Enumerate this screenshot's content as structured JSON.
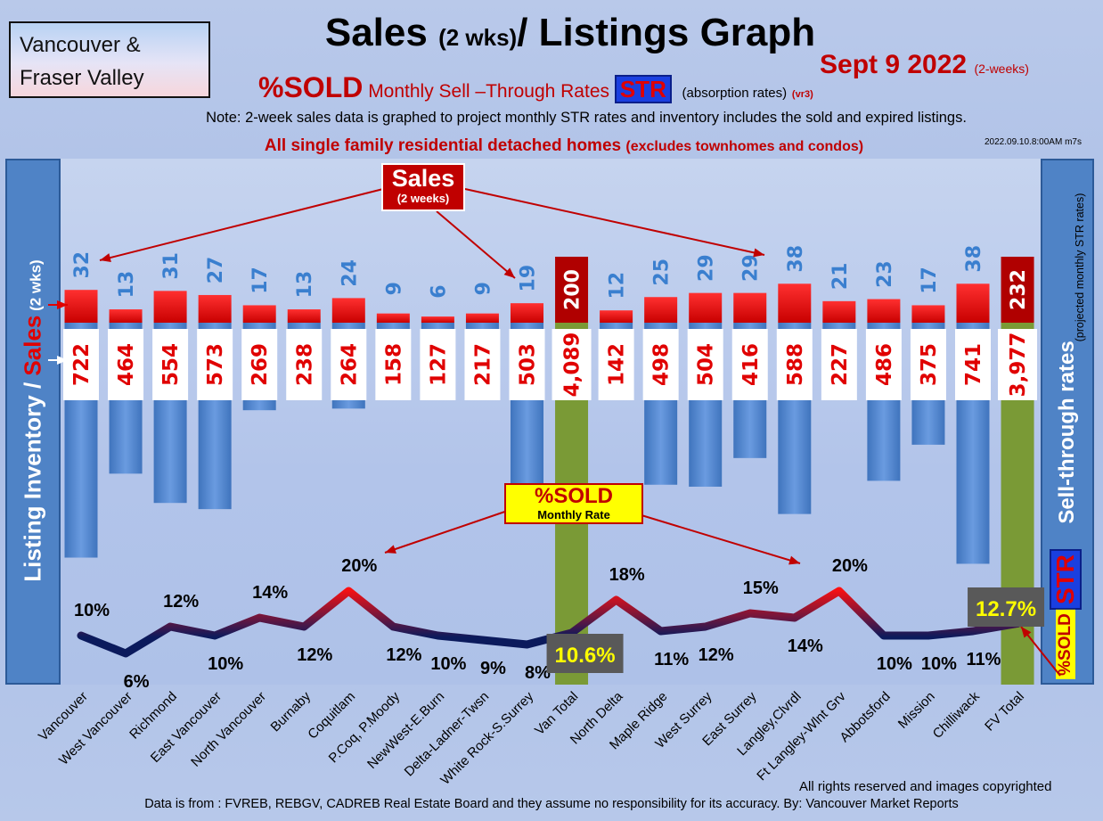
{
  "header": {
    "region_line1": "Vancouver &",
    "region_line2": "Fraser Valley",
    "title_main": "Sales ",
    "title_sub": "(2 wks)",
    "title_end": "/ Listings Graph",
    "date": "Sept 9  2022",
    "date_note": "(2-weeks)",
    "subtitle_pct": "%SOLD",
    "subtitle_text": "Monthly Sell –Through Rates",
    "str_badge": "STR",
    "absorption": "(absorption rates)",
    "version": "(vr3)",
    "note": "Note: 2-week sales data is graphed to project monthly STR rates and inventory includes the sold and expired listings.",
    "scope_main": "All single family residential detached homes",
    "scope_sub": "(excludes townhomes and condos)",
    "stamp": "2022.09.10.8:00AM m7s"
  },
  "axes": {
    "left_label_1": "Listing Inventory / ",
    "left_label_2": "Sales",
    "left_label_3": " (2 wks)",
    "right_label": "Sell-through rates",
    "right_sub": "(projected monthly STR rates)",
    "str_badge": "STR",
    "sold_badge": "%SOLD"
  },
  "callouts": {
    "sales_t1": "Sales",
    "sales_t2": "(2 weeks)",
    "sold_t1": "%SOLD",
    "sold_t2": "Monthly Rate"
  },
  "footer": {
    "rights": "All rights reserved and  images copyrighted",
    "source": "Data is from : FVREB, REBGV, CADREB Real Estate Board and they assume no responsibility for its accuracy. By: Vancouver Market Reports"
  },
  "colors": {
    "sales_bar": "#e60000",
    "listing_bar": "#4a84d0",
    "total_bar": "#7a9a36",
    "total_sales_bar": "#b00000",
    "line_low": "#0b1a5c",
    "line_high": "#ff1010"
  },
  "chart_data": {
    "type": "bar",
    "categories": [
      "Vancouver",
      "West Vancouver",
      "Richmond",
      "East Vancouver",
      "North Vancouver",
      "Burnaby",
      "Coquitlam",
      "P.Coq, P.Moody",
      "NewWest-E.Burn",
      "Delta-Ladner-Twsn",
      "White Rock-S.Surrey",
      "Van Total",
      "North Delta",
      "Maple Ridge",
      "West Surrey",
      "East Surrey",
      "Langley,Clvrdl",
      "Ft Langley-Wlnt Grv",
      "Abbotsford",
      "Mission",
      "Chilliwack",
      "FV Total"
    ],
    "series": [
      {
        "name": "Sales",
        "values": [
          32,
          13,
          31,
          27,
          17,
          13,
          24,
          9,
          6,
          9,
          19,
          200,
          12,
          25,
          29,
          29,
          38,
          21,
          23,
          17,
          38,
          232
        ],
        "labels": [
          "32",
          "13",
          "31",
          "27",
          "17",
          "13",
          "24",
          "9",
          "6",
          "9",
          "19",
          "200",
          "12",
          "25",
          "29",
          "29",
          "38",
          "21",
          "23",
          "17",
          "38",
          "232"
        ]
      },
      {
        "name": "Listing Inventory",
        "values": [
          722,
          464,
          554,
          573,
          269,
          238,
          264,
          158,
          127,
          217,
          503,
          4089,
          142,
          498,
          504,
          416,
          588,
          227,
          486,
          375,
          741,
          3977
        ],
        "labels": [
          "722",
          "464",
          "554",
          "573",
          "269",
          "238",
          "264",
          "158",
          "127",
          "217",
          "503",
          "4,089",
          "142",
          "498",
          "504",
          "416",
          "588",
          "227",
          "486",
          "375",
          "741",
          "3,977"
        ]
      },
      {
        "name": "%SOLD",
        "values": [
          10,
          6,
          12,
          10,
          14,
          12,
          20,
          12,
          10,
          9,
          8,
          10.6,
          18,
          11,
          12,
          15,
          14,
          20,
          10,
          10,
          11,
          12.7
        ],
        "labels": [
          "10%",
          "6%",
          "12%",
          "10%",
          "14%",
          "12%",
          "20%",
          "12%",
          "10%",
          "9%",
          "8%",
          "10.6%",
          "18%",
          "11%",
          "12%",
          "15%",
          "14%",
          "20%",
          "10%",
          "10%",
          "11%",
          "12.7%"
        ]
      }
    ],
    "totals": [
      "Van Total",
      "FV Total"
    ],
    "legend": "none"
  }
}
